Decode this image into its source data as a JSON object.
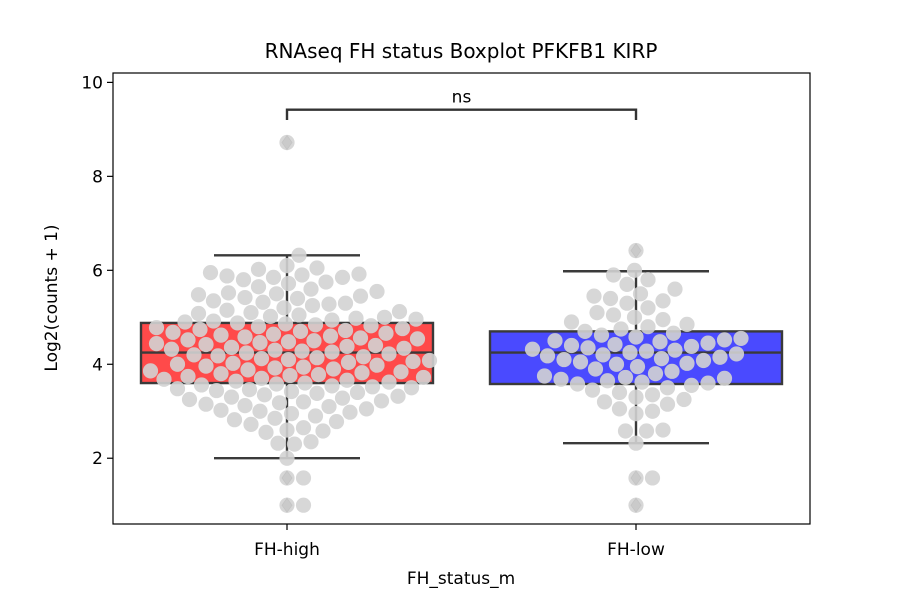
{
  "chart_data": {
    "type": "boxplot",
    "title": "RNAseq FH status Boxplot PFKFB1 KIRP",
    "xlabel": "FH_status_m",
    "ylabel": "Log2(counts + 1)",
    "categories": [
      "FH-high",
      "FH-low"
    ],
    "ylim": [
      0.6,
      10.2
    ],
    "yticks": [
      2,
      4,
      6,
      8,
      10
    ],
    "grid": false,
    "boxes": [
      {
        "name": "FH-high",
        "color": "#ff4a4a",
        "q1": 3.6,
        "median": 4.25,
        "q3": 4.88,
        "whisker_low": 2.0,
        "whisker_high": 6.32,
        "outliers": [
          8.72,
          1.58,
          1.0
        ]
      },
      {
        "name": "FH-low",
        "color": "#4a4aff",
        "q1": 3.58,
        "median": 4.25,
        "q3": 4.7,
        "whisker_low": 2.32,
        "whisker_high": 5.98,
        "outliers": [
          6.42,
          1.58,
          1.0
        ]
      }
    ],
    "points_color": "#d3d3d3",
    "points": [
      [
        8.72,
        6.32,
        6.1,
        6.05,
        6.02,
        5.95,
        5.92,
        5.9,
        5.88,
        5.85,
        5.85,
        5.8,
        5.75,
        5.72,
        5.65,
        5.6,
        5.55,
        5.52,
        5.5,
        5.48,
        5.45,
        5.42,
        5.4,
        5.35,
        5.32,
        5.3,
        5.28,
        5.25,
        5.2,
        5.15,
        5.12,
        5.1,
        5.08,
        5.05,
        5.02,
        5.0,
        4.98,
        4.96,
        4.94,
        4.92,
        4.9,
        4.88,
        4.86,
        4.84,
        4.82,
        4.8,
        4.78,
        4.76,
        4.74,
        4.72,
        4.7,
        4.68,
        4.66,
        4.64,
        4.62,
        4.6,
        4.58,
        4.56,
        4.54,
        4.52,
        4.5,
        4.48,
        4.46,
        4.44,
        4.42,
        4.4,
        4.38,
        4.36,
        4.34,
        4.32,
        4.3,
        4.28,
        4.26,
        4.24,
        4.22,
        4.2,
        4.18,
        4.16,
        4.14,
        4.12,
        4.1,
        4.08,
        4.06,
        4.04,
        4.02,
        4.0,
        3.98,
        3.96,
        3.94,
        3.92,
        3.9,
        3.88,
        3.86,
        3.84,
        3.82,
        3.8,
        3.78,
        3.76,
        3.74,
        3.72,
        3.7,
        3.68,
        3.66,
        3.64,
        3.62,
        3.6,
        3.58,
        3.56,
        3.54,
        3.52,
        3.5,
        3.48,
        3.46,
        3.44,
        3.42,
        3.4,
        3.38,
        3.35,
        3.32,
        3.3,
        3.28,
        3.25,
        3.22,
        3.2,
        3.18,
        3.15,
        3.12,
        3.1,
        3.05,
        3.02,
        3.0,
        2.98,
        2.95,
        2.9,
        2.85,
        2.82,
        2.78,
        2.72,
        2.65,
        2.6,
        2.58,
        2.55,
        2.35,
        2.32,
        2.3,
        2.0,
        1.58,
        1.58,
        1.0,
        1.0
      ],
      [
        6.42,
        6.0,
        5.9,
        5.8,
        5.7,
        5.6,
        5.5,
        5.45,
        5.4,
        5.35,
        5.3,
        5.2,
        5.1,
        5.05,
        5.0,
        4.95,
        4.9,
        4.85,
        4.8,
        4.75,
        4.7,
        4.66,
        4.62,
        4.58,
        4.55,
        4.52,
        4.5,
        4.48,
        4.45,
        4.42,
        4.4,
        4.38,
        4.35,
        4.32,
        4.3,
        4.28,
        4.25,
        4.22,
        4.2,
        4.18,
        4.15,
        4.12,
        4.1,
        4.08,
        4.05,
        4.02,
        4.0,
        3.95,
        3.9,
        3.85,
        3.8,
        3.75,
        3.72,
        3.7,
        3.68,
        3.65,
        3.62,
        3.6,
        3.58,
        3.55,
        3.5,
        3.45,
        3.4,
        3.35,
        3.3,
        3.25,
        3.2,
        3.15,
        3.05,
        3.0,
        2.95,
        2.6,
        2.58,
        2.58,
        2.32,
        1.58,
        1.58,
        1.0
      ]
    ],
    "annotation": {
      "text": "ns",
      "y": 9.42,
      "tick_bottom": 9.2
    }
  }
}
